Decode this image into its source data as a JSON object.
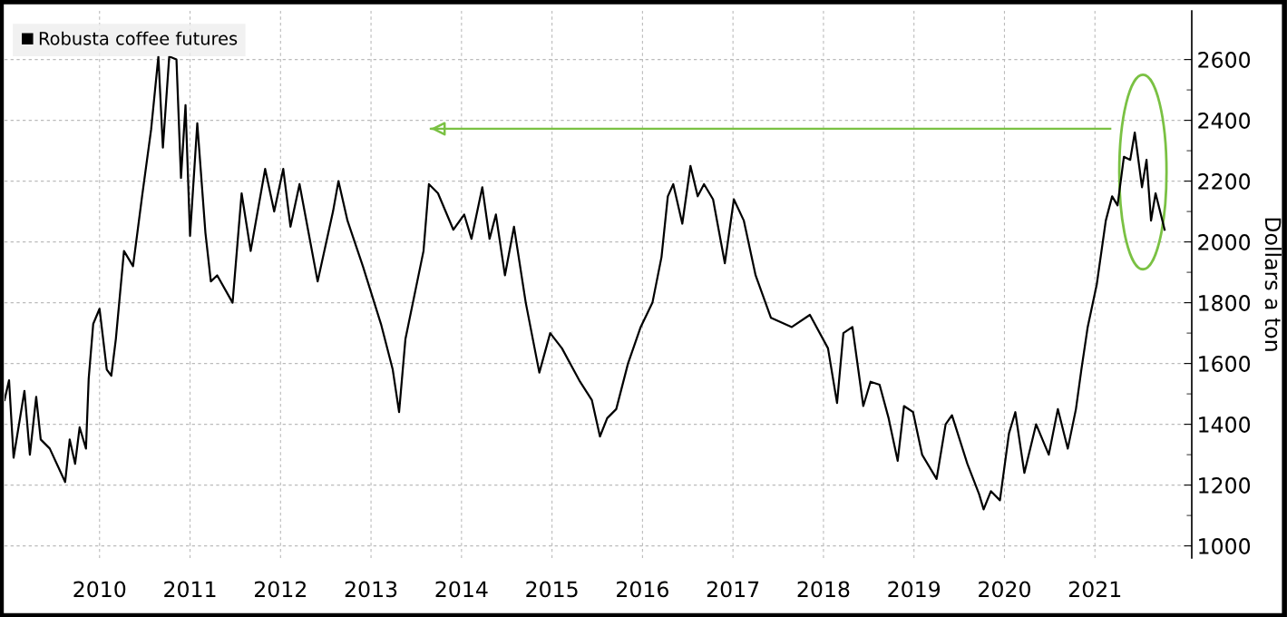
{
  "chart_data": {
    "type": "line",
    "ylabel": "Dollars a ton",
    "legend": "top left",
    "grid": true,
    "xlim": [
      2009.45,
      2022.57
    ],
    "ylim": [
      960,
      2760
    ],
    "xticks": [
      {
        "value": 2010.5,
        "label": "2010"
      },
      {
        "value": 2011.5,
        "label": "2011"
      },
      {
        "value": 2012.5,
        "label": "2012"
      },
      {
        "value": 2013.5,
        "label": "2013"
      },
      {
        "value": 2014.5,
        "label": "2014"
      },
      {
        "value": 2015.5,
        "label": "2015"
      },
      {
        "value": 2016.5,
        "label": "2016"
      },
      {
        "value": 2017.5,
        "label": "2017"
      },
      {
        "value": 2018.5,
        "label": "2018"
      },
      {
        "value": 2019.5,
        "label": "2019"
      },
      {
        "value": 2020.5,
        "label": "2020"
      },
      {
        "value": 2021.5,
        "label": "2021"
      }
    ],
    "yticks": [
      1000,
      {
        "value": 1100,
        "label": null
      },
      1200,
      {
        "value": 1300,
        "label": null
      },
      1400,
      {
        "value": 1500,
        "label": null
      },
      1600,
      {
        "value": 1700,
        "label": null
      },
      1800,
      {
        "value": 1900,
        "label": null
      },
      2000,
      {
        "value": 2100,
        "label": null
      },
      2200,
      {
        "value": 2300,
        "label": null
      },
      2400,
      {
        "value": 2500,
        "label": null
      },
      2600
    ],
    "series": [
      {
        "name": "Robusta coffee futures",
        "color": "#000000",
        "x": [
          2009.45,
          2009.5,
          2009.55,
          2009.67,
          2009.73,
          2009.8,
          2009.85,
          2009.95,
          2010.12,
          2010.17,
          2010.23,
          2010.28,
          2010.35,
          2010.38,
          2010.43,
          2010.5,
          2010.58,
          2010.63,
          2010.68,
          2010.77,
          2010.87,
          2010.97,
          2011.07,
          2011.15,
          2011.2,
          2011.27,
          2011.35,
          2011.4,
          2011.45,
          2011.5,
          2011.58,
          2011.67,
          2011.73,
          2011.8,
          2011.97,
          2012.07,
          2012.17,
          2012.33,
          2012.43,
          2012.53,
          2012.61,
          2012.71,
          2012.91,
          2013.08,
          2013.14,
          2013.24,
          2013.41,
          2013.61,
          2013.74,
          2013.81,
          2013.88,
          2014.08,
          2014.14,
          2014.24,
          2014.41,
          2014.53,
          2014.61,
          2014.73,
          2014.81,
          2014.88,
          2014.98,
          2015.08,
          2015.21,
          2015.36,
          2015.48,
          2015.61,
          2015.81,
          2015.94,
          2016.03,
          2016.11,
          2016.21,
          2016.34,
          2016.48,
          2016.61,
          2016.71,
          2016.78,
          2016.84,
          2016.94,
          2017.03,
          2017.11,
          2017.18,
          2017.28,
          2017.41,
          2017.51,
          2017.62,
          2017.75,
          2017.92,
          2018.15,
          2018.35,
          2018.55,
          2018.65,
          2018.72,
          2018.82,
          2018.94,
          2019.02,
          2019.12,
          2019.22,
          2019.32,
          2019.39,
          2019.49,
          2019.59,
          2019.75,
          2019.85,
          2019.92,
          2020.09,
          2020.22,
          2020.27,
          2020.35,
          2020.45,
          2020.55,
          2020.62,
          2020.72,
          2020.85,
          2020.99,
          2021.09,
          2021.2,
          2021.29,
          2021.35,
          2021.42,
          2021.52,
          2021.62,
          2021.69,
          2021.75,
          2021.82,
          2021.89,
          2021.94,
          2022.02,
          2022.07,
          2022.12,
          2022.17,
          2022.22,
          2022.27
        ],
        "values": [
          1480,
          1545,
          1290,
          1510,
          1300,
          1490,
          1350,
          1320,
          1210,
          1350,
          1270,
          1390,
          1320,
          1550,
          1730,
          1780,
          1580,
          1560,
          1680,
          1970,
          1920,
          2150,
          2370,
          2610,
          2310,
          2610,
          2600,
          2210,
          2450,
          2020,
          2390,
          2030,
          1870,
          1890,
          1800,
          2160,
          1970,
          2240,
          2100,
          2240,
          2050,
          2190,
          1870,
          2100,
          2200,
          2070,
          1920,
          1730,
          1580,
          1440,
          1680,
          1970,
          2190,
          2160,
          2040,
          2090,
          2010,
          2180,
          2010,
          2090,
          1890,
          2050,
          1800,
          1570,
          1700,
          1650,
          1540,
          1480,
          1360,
          1420,
          1450,
          1600,
          1720,
          1800,
          1950,
          2150,
          2190,
          2060,
          2250,
          2150,
          2190,
          2140,
          1930,
          2140,
          2070,
          1890,
          1750,
          1720,
          1760,
          1650,
          1470,
          1700,
          1720,
          1460,
          1540,
          1530,
          1420,
          1280,
          1460,
          1440,
          1300,
          1220,
          1400,
          1430,
          1270,
          1170,
          1120,
          1180,
          1150,
          1370,
          1440,
          1240,
          1400,
          1300,
          1450,
          1320,
          1450,
          1580,
          1720,
          1860,
          2070,
          2150,
          2120,
          2280,
          2270,
          2360,
          2180,
          2270,
          2070,
          2160,
          2100,
          2040
        ]
      },
      {
        "color": "#7ac143",
        "x": [
          2021.67,
          2014.16
        ],
        "values": [
          2372,
          2372
        ]
      }
    ]
  }
}
